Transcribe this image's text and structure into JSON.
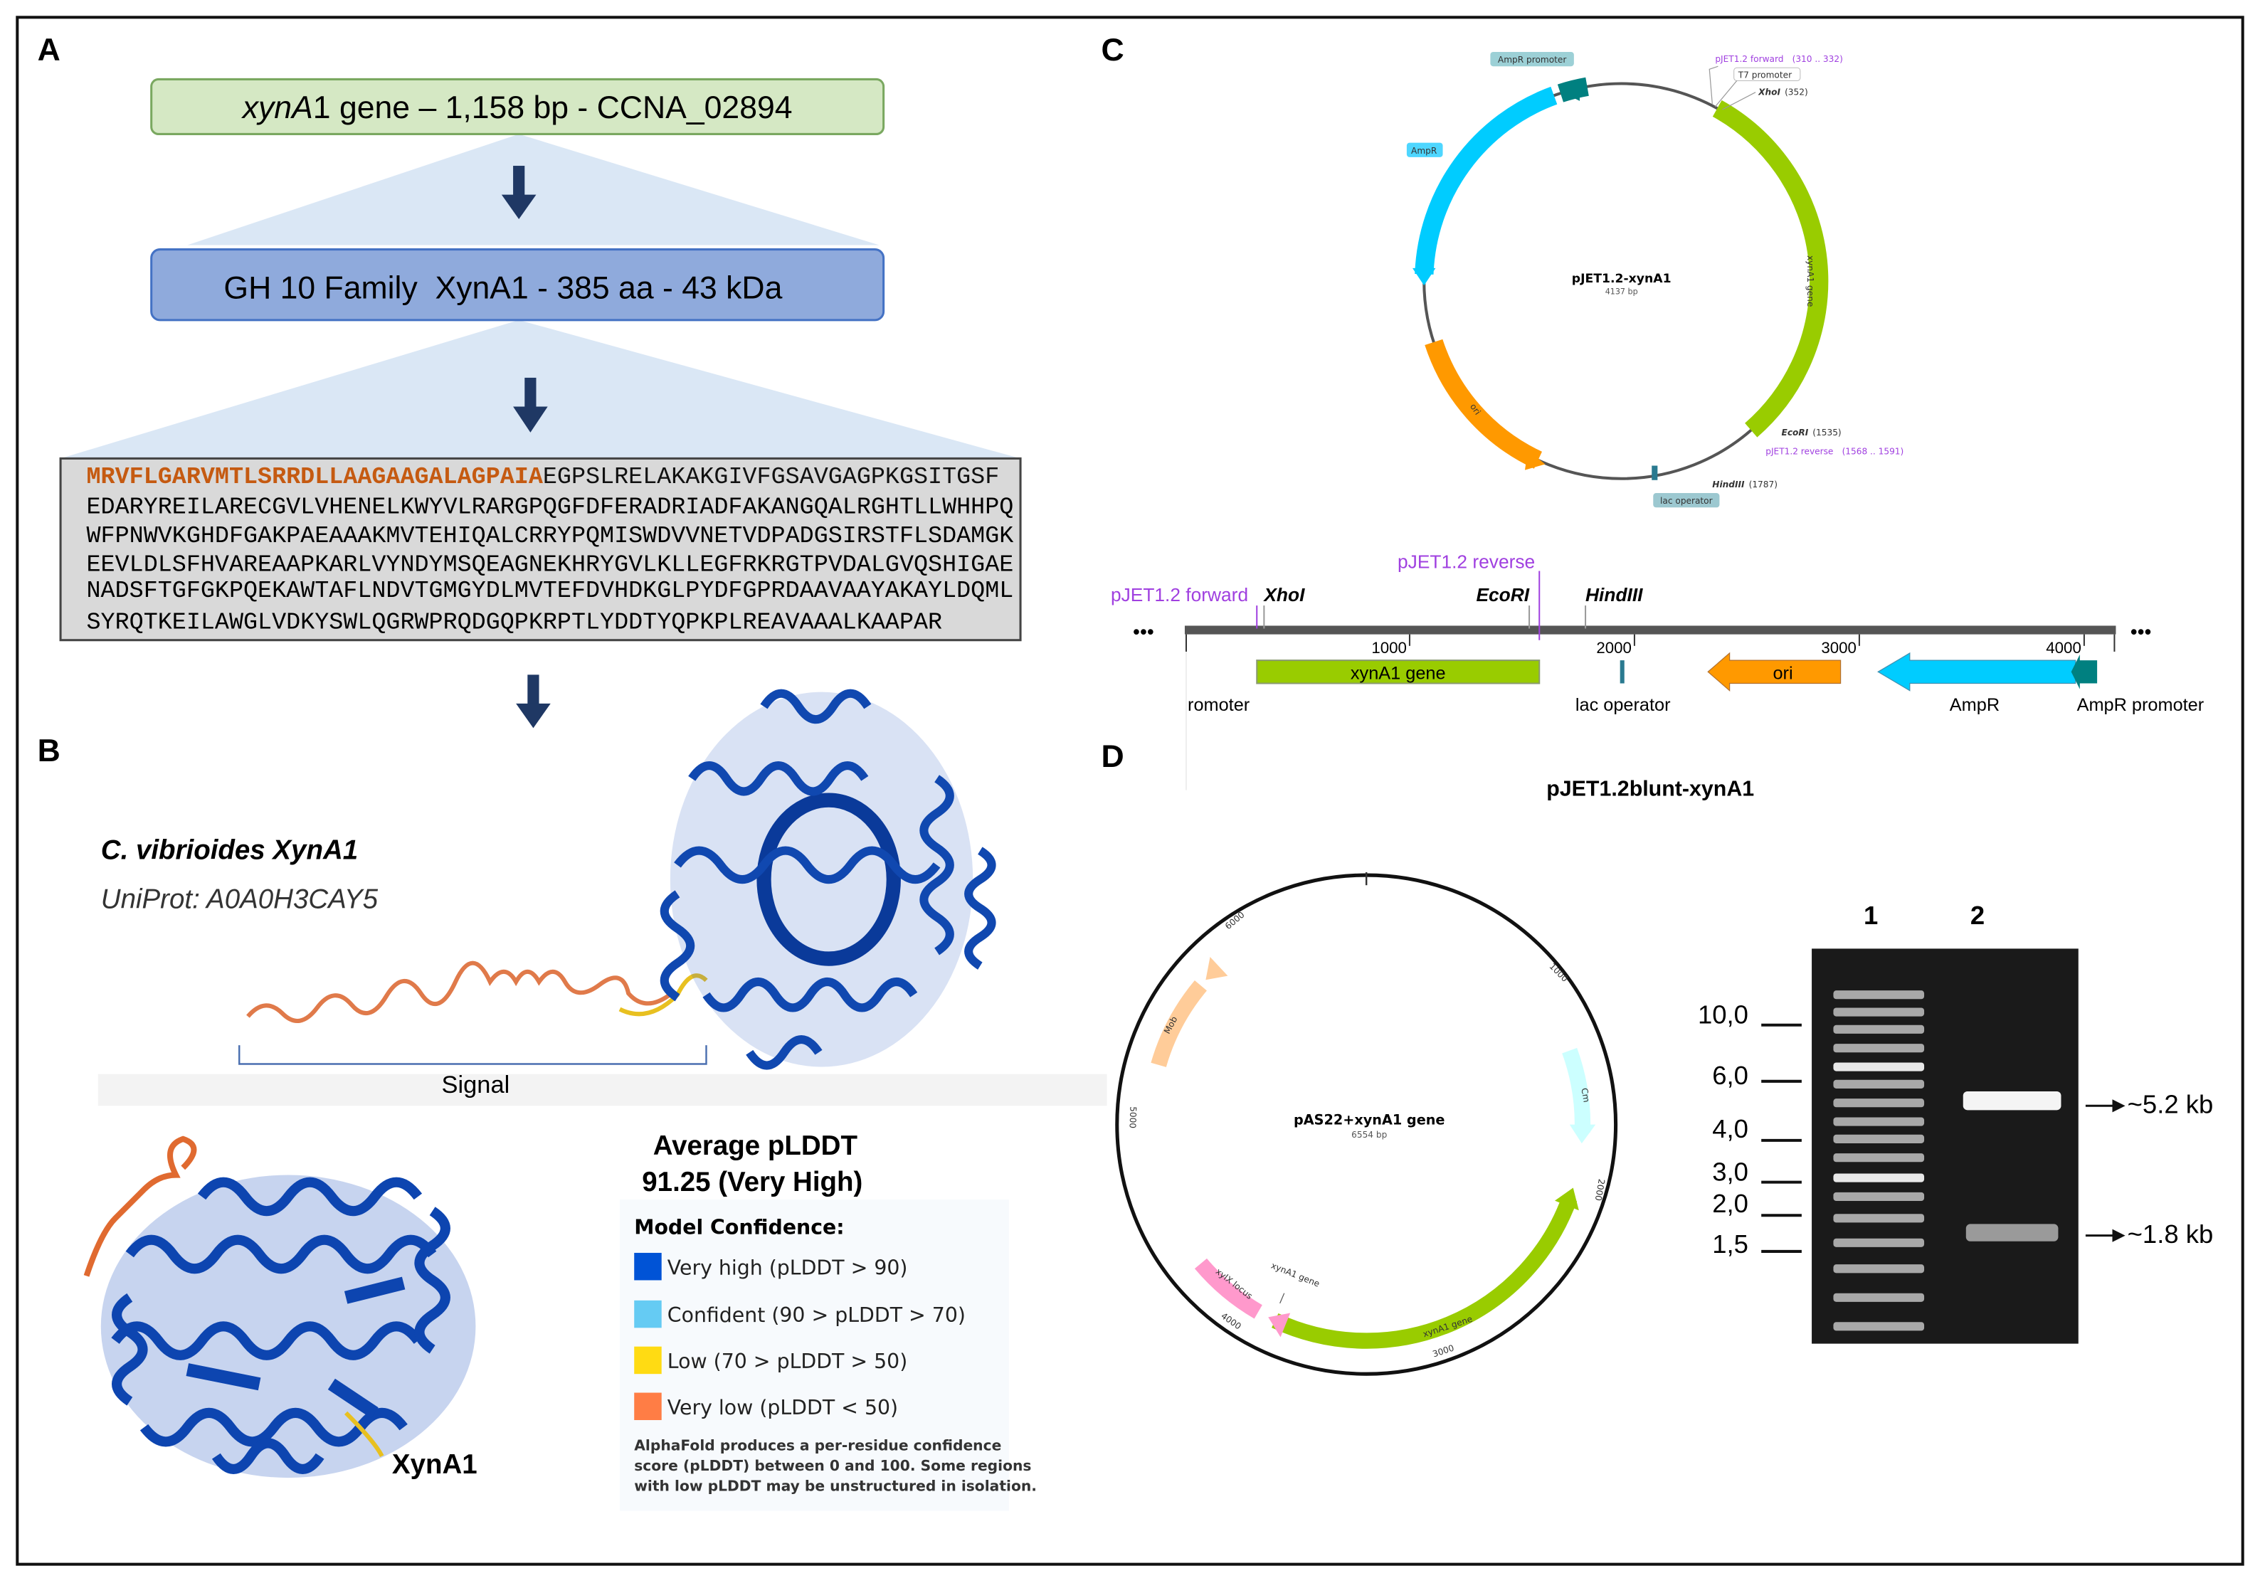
{
  "panels": {
    "a": "A",
    "b": "B",
    "c": "C",
    "d": "D"
  },
  "panel_a": {
    "gene_box": {
      "symbol_italic": "xynA",
      "rest": "1 gene – 1,158 bp - CCNA_02894",
      "fill": "#d5e8c4",
      "stroke": "#7aa860"
    },
    "protein_box": {
      "text": "GH 10 Family  XynA1 - 385 aa - 43 kDa",
      "fill": "#8faadc",
      "stroke": "#4472c4"
    },
    "sequence": {
      "signal_peptide": "MRVFLGARVMTLSRRDLLAAGAAGALAGPAIA",
      "signal_color": "#c55a11",
      "line1_rest": "EGPSLRELAKAKGIVFGSAVGAGPKGSITGSF",
      "lines": [
        "EDARYREILARECGVLVHENELKWYVLRARGPQGFDFERADRIADFAKANGQALRGHTLLWHHPQ",
        "WFPNWVKGHDFGAKPAEAAAKMVTEHIQALCRRYPQMISWDVVNETVDPADGSIRSTFLSDAMGK",
        "EEVLDLSFHVAREAAPKARLVYNDYMSQEAGNEKHRYGVLKLLEGFRKRGTPVDALGVQSHIGAE",
        "NADSFTGFGKPQEKAWTAFLNDVTGMGYDLMVTEFDVHDKGLPYDFGPRDAAVAAYAKAYLDQML",
        "SYRQTKEILAWGLVDKYSWLQGRWPRQDGQPKRPTLYDDTYQPKPLREAVAAALKAAPAR"
      ]
    }
  },
  "panel_b": {
    "organism": "C. vibrioides XynA1",
    "uniprot": "UniProt: A0A0H3CAY5",
    "signal_label": "Signal",
    "structure_label": "XynA1",
    "avg_title": "Average pLDDT",
    "avg_value": "91.25 (Very High)",
    "legend": {
      "title": "Model Confidence:",
      "items": [
        {
          "label": "Very high (pLDDT > 90)",
          "color": "#0053d6"
        },
        {
          "label": "Confident (90 > pLDDT > 70)",
          "color": "#65cbf3"
        },
        {
          "label": "Low (70 > pLDDT > 50)",
          "color": "#ffdb13"
        },
        {
          "label": "Very low (pLDDT < 50)",
          "color": "#ff7d45"
        }
      ],
      "footnote": [
        "AlphaFold produces a per-residue confidence",
        "score (pLDDT) between 0 and 100. Some regions",
        "with low pLDDT may be unstructured in isolation."
      ]
    }
  },
  "panel_c": {
    "circular": {
      "name": "pJET1.2-xynA1",
      "size": "4137 bp",
      "features": {
        "ampr_promoter": "AmpR promoter",
        "ampr": "AmpR",
        "forward": "pJET1.2 forward",
        "forward_range": "(310 .. 332)",
        "t7": "T7 promoter",
        "xhoi": "XhoI",
        "xhoi_pos": "(352)",
        "gene": "xynA1 gene",
        "ori": "ori",
        "ecori": "EcoRI",
        "ecori_pos": "(1535)",
        "reverse": "pJET1.2 reverse",
        "reverse_range": "(1568 .. 1591)",
        "hindiii": "HindIII",
        "hindiii_pos": "(1787)",
        "lac": "lac operator"
      }
    },
    "linear": {
      "title": "pJET1.2blunt-xynA1",
      "ellipsis": "•••",
      "ticks": [
        "1000",
        "2000",
        "3000",
        "4000"
      ],
      "top_labels": {
        "forward": "pJET1.2 forward",
        "xhoi": "XhoI",
        "ecori": "EcoRI",
        "reverse": "pJET1.2 reverse",
        "hindiii": "HindIII"
      },
      "features": {
        "gene": "xynA1 gene",
        "ori": "ori"
      },
      "bottom_labels": {
        "promoter": "romoter",
        "lac": "lac operator",
        "ampr": "AmpR",
        "ampr_promoter": "AmpR promoter"
      }
    },
    "colors": {
      "gene": "#99cc00",
      "ori": "#ff9900",
      "ampr": "#00ccff",
      "ampr_promoter": "#008080",
      "primer": "#a040e0"
    }
  },
  "panel_d": {
    "plasmid": {
      "name": "pAS22+xynA1 gene",
      "size": "6554 bp",
      "ticks": [
        "1000",
        "2000",
        "3000",
        "4000",
        "5000",
        "6000"
      ],
      "features": {
        "mob": "Mob",
        "cm": "Cm",
        "gene": "xynA1 gene",
        "gene_marker": "xynA1 gene",
        "xylx": "xylX locus"
      },
      "colors": {
        "mob": "#ffcc99",
        "cm": "#ccffff",
        "gene": "#99cc00",
        "xylx": "#ff99cc"
      }
    },
    "gel": {
      "lanes": [
        "1",
        "2"
      ],
      "ladder": [
        "10,0",
        "6,0",
        "4,0",
        "3,0",
        "2,0",
        "1,5"
      ],
      "bands": [
        {
          "label": "~5.2 kb"
        },
        {
          "label": "~1.8 kb"
        }
      ]
    }
  }
}
